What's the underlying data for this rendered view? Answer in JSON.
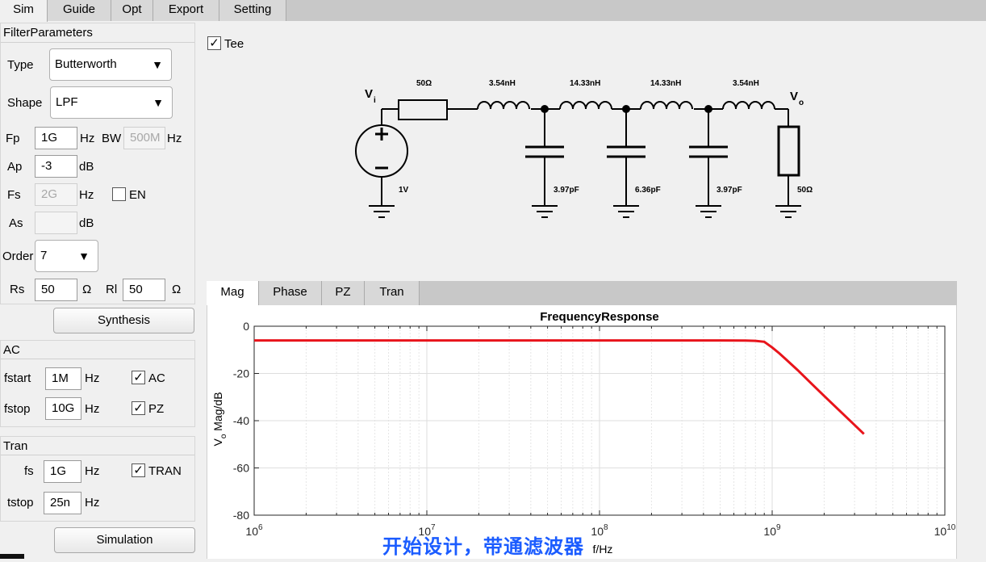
{
  "tabs": [
    "Sim",
    "Guide",
    "Opt",
    "Export",
    "Setting"
  ],
  "filter_params": {
    "title": "FilterParameters",
    "type_label": "Type",
    "type_value": "Butterworth",
    "shape_label": "Shape",
    "shape_value": "LPF",
    "fp_label": "Fp",
    "fp_value": "1G",
    "fp_unit": "Hz",
    "bw_label": "BW",
    "bw_value": "500M",
    "bw_unit": "Hz",
    "ap_label": "Ap",
    "ap_value": "-3",
    "ap_unit": "dB",
    "fs_label": "Fs",
    "fs_value": "2G",
    "fs_unit": "Hz",
    "en_label": "EN",
    "as_label": "As",
    "as_value": "",
    "as_unit": "dB",
    "order_label": "Order",
    "order_value": "7",
    "rs_label": "Rs",
    "rs_value": "50",
    "rs_unit": "Ω",
    "rl_label": "Rl",
    "rl_value": "50",
    "rl_unit": "Ω",
    "synthesis_label": "Synthesis"
  },
  "ac": {
    "title": "AC",
    "fstart_label": "fstart",
    "fstart_value": "1M",
    "fstart_unit": "Hz",
    "fstop_label": "fstop",
    "fstop_value": "10G",
    "fstop_unit": "Hz",
    "ac_check_label": "AC",
    "pz_check_label": "PZ"
  },
  "tran": {
    "title": "Tran",
    "fs_label": "fs",
    "fs_value": "1G",
    "fs_unit": "Hz",
    "tstop_label": "tstop",
    "tstop_value": "25n",
    "tstop_unit": "Hz",
    "tran_check_label": "TRAN",
    "simulation_label": "Simulation"
  },
  "schematic": {
    "tee_label": "Tee",
    "vi_label": "V",
    "vi_sub": "i",
    "vo_label": "V",
    "vo_sub": "o",
    "source_value": "1V",
    "rs_value": "50Ω",
    "rl_value": "50Ω",
    "inductors": [
      "3.54nH",
      "14.33nH",
      "14.33nH",
      "3.54nH"
    ],
    "capacitors": [
      "3.97pF",
      "6.36pF",
      "3.97pF"
    ]
  },
  "plot_tabs": [
    "Mag",
    "Phase",
    "PZ",
    "Tran"
  ],
  "chart_data": {
    "type": "line",
    "title": "FrequencyResponse",
    "xlabel": "f/Hz",
    "ylabel": "V",
    "ylabel_sub": "o",
    "ylabel_rest": " Mag/dB",
    "xscale": "log",
    "xlim": [
      1000000,
      10000000000
    ],
    "ylim": [
      -80,
      0
    ],
    "xticks": [
      1000000,
      10000000,
      100000000,
      1000000000,
      10000000000
    ],
    "xtick_exponents": [
      "6",
      "7",
      "8",
      "9",
      "10"
    ],
    "xtick_base": "10",
    "yticks": [
      0,
      -20,
      -40,
      -60,
      -80
    ],
    "grid": true,
    "series": [
      {
        "color": "#e8141b",
        "x": [
          1000000,
          100000000,
          500000000,
          700000000,
          800000000,
          900000000,
          1000000000,
          1100000000,
          1200000000,
          1400000000,
          1700000000,
          2000000000,
          2500000000,
          3000000000,
          3400000000
        ],
        "y": [
          -6.02,
          -6.02,
          -6.02,
          -6.08,
          -6.2,
          -6.6,
          -9.0,
          -11.5,
          -14.0,
          -18.5,
          -24.5,
          -29.5,
          -36.3,
          -41.8,
          -45.6
        ]
      }
    ]
  },
  "subtitle": "开始设计，带通滤波器"
}
